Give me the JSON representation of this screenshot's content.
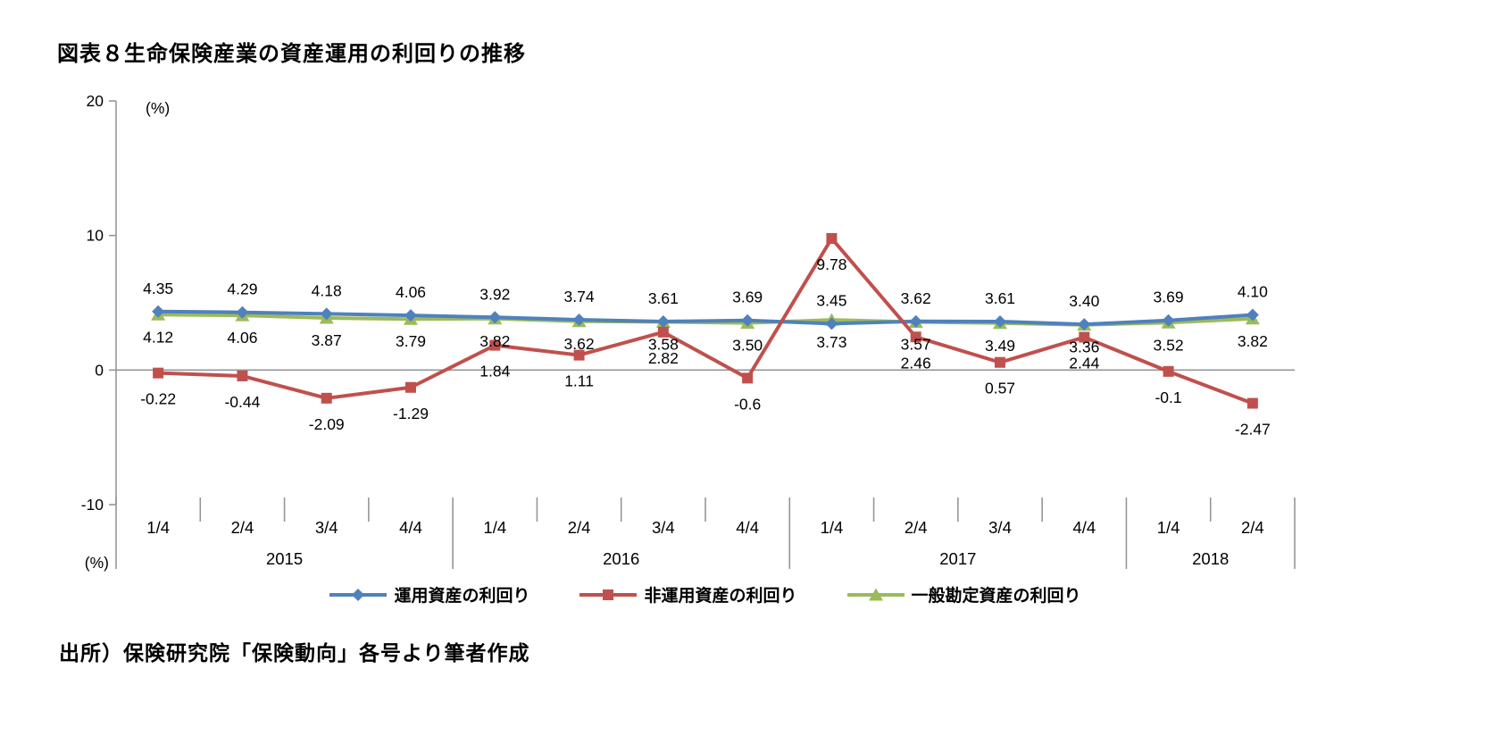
{
  "page": {
    "source": "出所）保険研究院「保険動向」各号より筆者作成"
  },
  "chart_data": {
    "type": "line",
    "title": "図表８生命保険産業の資産運用の利回りの推移",
    "unit_top": "(%)",
    "unit_bottom": "(%)",
    "ylim": [
      -10,
      20
    ],
    "yticks": [
      20,
      10,
      0,
      -10
    ],
    "grid": "zero-line-only",
    "legend_position": "bottom",
    "categories": [
      "1/4",
      "2/4",
      "3/4",
      "4/4",
      "1/4",
      "2/4",
      "3/4",
      "4/4",
      "1/4",
      "2/4",
      "3/4",
      "4/4",
      "1/4",
      "2/4"
    ],
    "year_groups": [
      {
        "label": "2015",
        "count": 4
      },
      {
        "label": "2016",
        "count": 4
      },
      {
        "label": "2017",
        "count": 4
      },
      {
        "label": "2018",
        "count": 2
      }
    ],
    "series": [
      {
        "name": "運用資産の利回り",
        "color": "#4f81bd",
        "marker": "diamond",
        "label_position": "above",
        "values": [
          4.35,
          4.29,
          4.18,
          4.06,
          3.92,
          3.74,
          3.61,
          3.69,
          3.45,
          3.62,
          3.61,
          3.4,
          3.69,
          4.1
        ],
        "labels": [
          "4.35",
          "4.29",
          "4.18",
          "4.06",
          "3.92",
          "3.74",
          "3.61",
          "3.69",
          "3.45",
          "3.62",
          "3.61",
          "3.40",
          "3.69",
          "4.10"
        ]
      },
      {
        "name": "非運用資産の利回り",
        "color": "#c0504d",
        "marker": "square",
        "label_position": "below",
        "values": [
          -0.22,
          -0.44,
          -2.09,
          -1.29,
          1.84,
          1.11,
          2.82,
          -0.6,
          9.78,
          2.46,
          0.57,
          2.44,
          -0.1,
          -2.47
        ],
        "labels": [
          "-0.22",
          "-0.44",
          "-2.09",
          "-1.29",
          "1.84",
          "1.11",
          "2.82",
          "-0.6",
          "9.78",
          "2.46",
          "0.57",
          "2.44",
          "-0.1",
          "-2.47"
        ]
      },
      {
        "name": "一般勘定資産の利回り",
        "color": "#9bbb59",
        "marker": "triangle",
        "label_position": "below",
        "values": [
          4.12,
          4.06,
          3.87,
          3.79,
          3.82,
          3.62,
          3.58,
          3.5,
          3.73,
          3.57,
          3.49,
          3.36,
          3.52,
          3.82
        ],
        "labels": [
          "4.12",
          "4.06",
          "3.87",
          "3.79",
          "3.82",
          "3.62",
          "3.58",
          "3.50",
          "3.73",
          "3.57",
          "3.49",
          "3.36",
          "3.52",
          "3.82"
        ]
      }
    ]
  }
}
